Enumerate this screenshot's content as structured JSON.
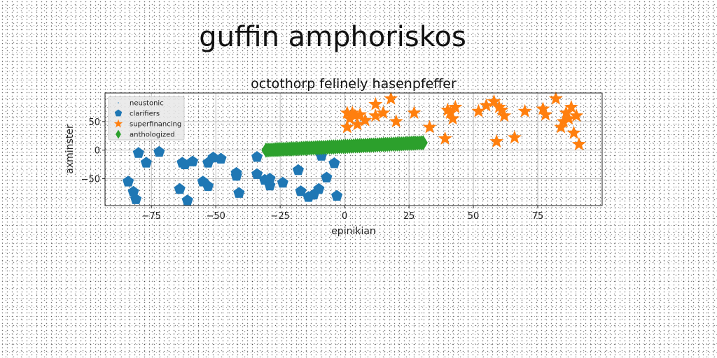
{
  "figure_title": "guffin amphoriskos",
  "chart_data": {
    "type": "scatter",
    "title": "octothorp felinely hasenpfeffer",
    "xlabel": "epinikian",
    "ylabel": "axminster",
    "xlim": [
      -93,
      100
    ],
    "ylim": [
      -97,
      100
    ],
    "xticks": [
      -75,
      -50,
      -25,
      0,
      25,
      50,
      75
    ],
    "yticks": [
      -50,
      0,
      50
    ],
    "xtick_labels": [
      "−75",
      "−50",
      "−25",
      "0",
      "25",
      "50",
      "75"
    ],
    "ytick_labels": [
      "−50",
      "0",
      "50"
    ],
    "grid": true,
    "legend": {
      "placement": "top-left",
      "entries": [
        "neustonic",
        "clarifiers",
        "superfinancing",
        "anthologized"
      ]
    },
    "series": [
      {
        "name": "neustonic",
        "marker": "point",
        "color": "#1f77b4",
        "points": []
      },
      {
        "name": "clarifiers",
        "marker": "pentagon",
        "color": "#1f77b4",
        "points": [
          [
            -84,
            -55
          ],
          [
            -82,
            -73
          ],
          [
            -81,
            -86
          ],
          [
            -80,
            -5
          ],
          [
            -77,
            -22
          ],
          [
            -72,
            -3
          ],
          [
            -64,
            -68
          ],
          [
            -63,
            -22
          ],
          [
            -62,
            -25
          ],
          [
            -61,
            -88
          ],
          [
            -59,
            -20
          ],
          [
            -55,
            -55
          ],
          [
            -53,
            -22
          ],
          [
            -53,
            -63
          ],
          [
            -51,
            -13
          ],
          [
            -48,
            -15
          ],
          [
            -42,
            -40
          ],
          [
            -42,
            -45
          ],
          [
            -41,
            -75
          ],
          [
            -34,
            -12
          ],
          [
            -34,
            -42
          ],
          [
            -31,
            -52
          ],
          [
            -29,
            -62
          ],
          [
            -29,
            -50
          ],
          [
            -24,
            -57
          ],
          [
            -18,
            -35
          ],
          [
            -17,
            -72
          ],
          [
            -14,
            -82
          ],
          [
            -12,
            -78
          ],
          [
            -10,
            -68
          ],
          [
            -9,
            -10
          ],
          [
            -7,
            -48
          ],
          [
            -4,
            -23
          ],
          [
            -3,
            -80
          ]
        ]
      },
      {
        "name": "superfinancing",
        "marker": "star",
        "color": "#ff7f0e",
        "points": [
          [
            1,
            40
          ],
          [
            1,
            65
          ],
          [
            2,
            55
          ],
          [
            3,
            65
          ],
          [
            4,
            60
          ],
          [
            5,
            45
          ],
          [
            6,
            62
          ],
          [
            8,
            52
          ],
          [
            12,
            80
          ],
          [
            12,
            60
          ],
          [
            15,
            65
          ],
          [
            18,
            90
          ],
          [
            20,
            50
          ],
          [
            27,
            65
          ],
          [
            33,
            40
          ],
          [
            39,
            20
          ],
          [
            40,
            70
          ],
          [
            41,
            65
          ],
          [
            42,
            55
          ],
          [
            43,
            75
          ],
          [
            52,
            68
          ],
          [
            55,
            78
          ],
          [
            58,
            85
          ],
          [
            59,
            15
          ],
          [
            60,
            75
          ],
          [
            61,
            70
          ],
          [
            62,
            60
          ],
          [
            66,
            22
          ],
          [
            70,
            68
          ],
          [
            77,
            72
          ],
          [
            78,
            62
          ],
          [
            82,
            90
          ],
          [
            84,
            40
          ],
          [
            85,
            50
          ],
          [
            86,
            65
          ],
          [
            87,
            55
          ],
          [
            88,
            75
          ],
          [
            89,
            30
          ],
          [
            90,
            60
          ],
          [
            91,
            10
          ]
        ]
      },
      {
        "name": "anthologized",
        "marker": "diamond",
        "color": "#2ca02c",
        "x_start": -30.5,
        "x_end": 30.5,
        "y_start": 0,
        "y_end": 13,
        "count": 80
      }
    ]
  }
}
